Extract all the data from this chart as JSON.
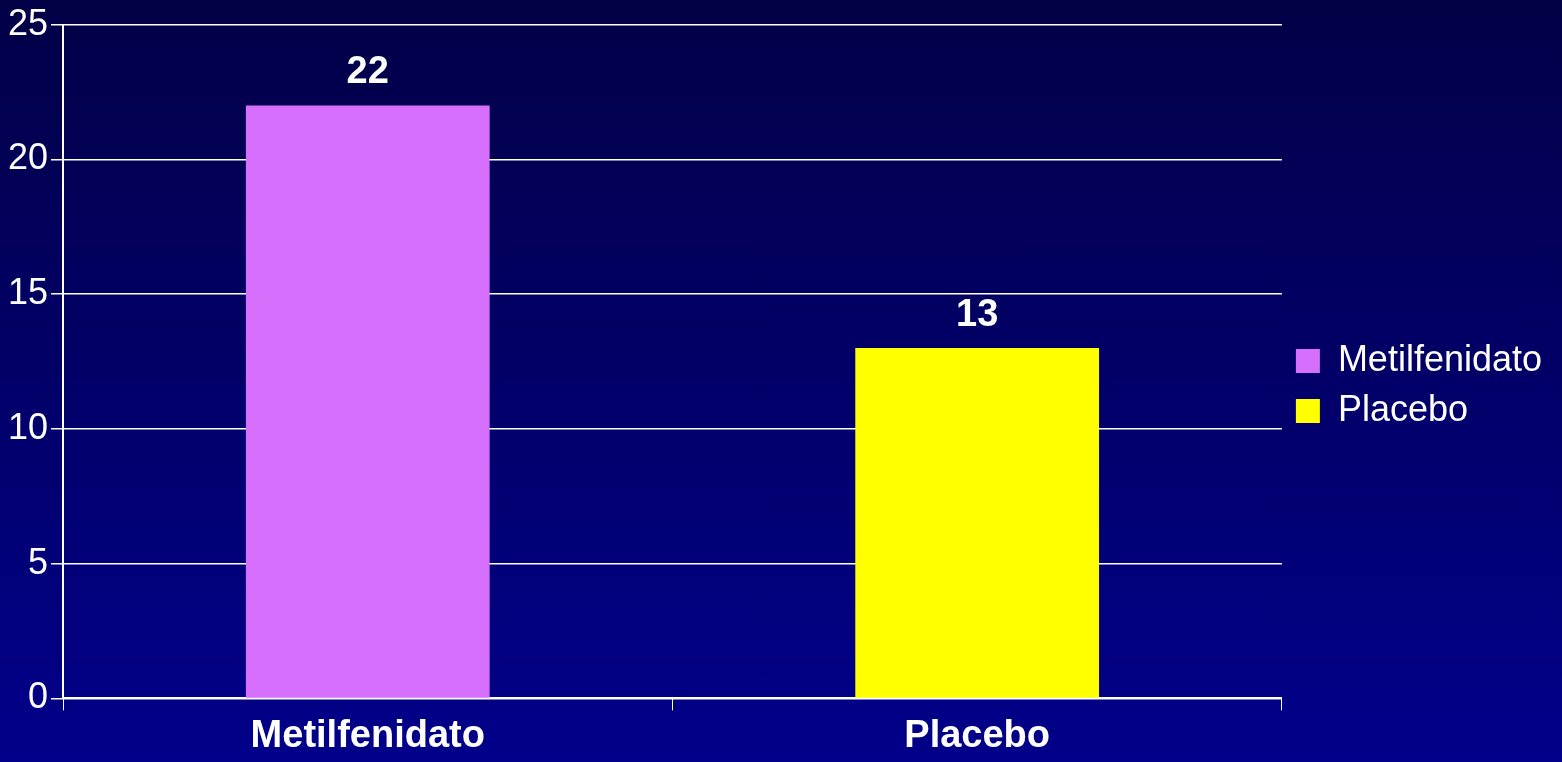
{
  "chart_data": {
    "type": "bar",
    "categories": [
      "Metilfenidato",
      "Placebo"
    ],
    "series": [
      {
        "name": "Metilfenidato",
        "color": "#d670fc",
        "values": [
          22,
          null
        ]
      },
      {
        "name": "Placebo",
        "color": "#ffff00",
        "values": [
          null,
          13
        ]
      }
    ],
    "ylim": [
      0,
      25
    ],
    "yticks": [
      0,
      5,
      10,
      15,
      20,
      25
    ],
    "grid": "y",
    "legend": "right",
    "data_labels": true
  }
}
